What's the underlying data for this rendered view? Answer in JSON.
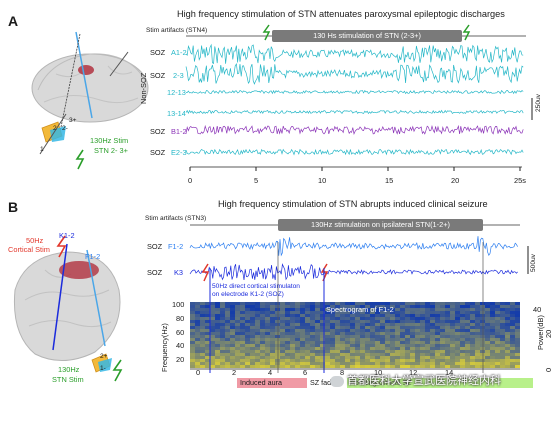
{
  "panel_a": {
    "letter": "A",
    "title": "High frequency stimulation of STN attenuates paroxysmal epileptogic discharges",
    "stim_artifacts_label": "Stim artifacts (STN4)",
    "stim_bar_label": "130 Hs stimulation of STN (2-3+)",
    "channel_labels": [
      {
        "group": "SOZ",
        "channel": "A1-2"
      },
      {
        "group": "SOZ",
        "channel": "2-3"
      },
      {
        "group": "",
        "channel": "12-13"
      },
      {
        "group": "",
        "channel": "13-14"
      },
      {
        "group": "SOZ",
        "channel": "B1-2"
      },
      {
        "group": "SOZ",
        "channel": "E2-3"
      }
    ],
    "non_soz_label": "Non-SOZ",
    "scale_label": "250uv",
    "lead_labels": {
      "l1": "1",
      "l2": "2",
      "l3": "3+",
      "l4": "2-"
    },
    "stim_note_line1": "130Hz  Stim",
    "stim_note_line2": "STN 2- 3+",
    "x_ticks": [
      "0",
      "5",
      "10",
      "15",
      "20",
      "25s"
    ]
  },
  "panel_b": {
    "letter": "B",
    "title": "High frequency stimulation of STN abrupts induced clinical seizure",
    "stim_artifacts_label": "Stim artifacts (STN3)",
    "stim_bar_label": "130Hz stimulation on ipsilateral STN(1-2+)",
    "channel_labels": [
      {
        "group": "SOZ",
        "channel": "F1-2"
      },
      {
        "group": "SOZ",
        "channel": "K3"
      }
    ],
    "scale_label": "500uv",
    "brain_labels": {
      "cortical_stim_1": "50Hz",
      "cortical_stim_2": "Cortical Stim",
      "k_label": "K1-2",
      "f_label": "F1-2",
      "stn_stim_1": "130Hz",
      "stn_stim_2": "STN Stim",
      "lead_2": "2+",
      "lead_1": "1-"
    },
    "cortical_note_line1": "50Hz direct cortical stimulaton",
    "cortical_note_line2": "on electrode K1-2 (SOZ)",
    "spectrogram_title": "Spectrogram of F1-2",
    "ylabel": "Frequency(Hz)",
    "y_ticks": [
      "100",
      "80",
      "60",
      "40",
      "20"
    ],
    "colorbar_label": "Power(dB)",
    "colorbar_ticks": [
      "40",
      "20",
      "0"
    ],
    "x_ticks": [
      "0",
      "2",
      "4",
      "6",
      "8",
      "10",
      "12",
      "14"
    ],
    "phases": [
      {
        "label": "Induced aura",
        "color": "#f09aa5"
      },
      {
        "label": "SZ fading",
        "color": "#ffffff"
      },
      {
        "label": "Aborting clinical SZ",
        "color": "#b8f08a"
      }
    ],
    "watermark": "首都医科大学宣武医院神经内科"
  },
  "colors": {
    "cyan": "#25b7c7",
    "purple": "#8c35b8",
    "blue": "#2e7ff0",
    "darkblue": "#1b2bdc",
    "green": "#2a9e2a",
    "red": "#e2372b",
    "stimbar": "#7a7a7a"
  }
}
